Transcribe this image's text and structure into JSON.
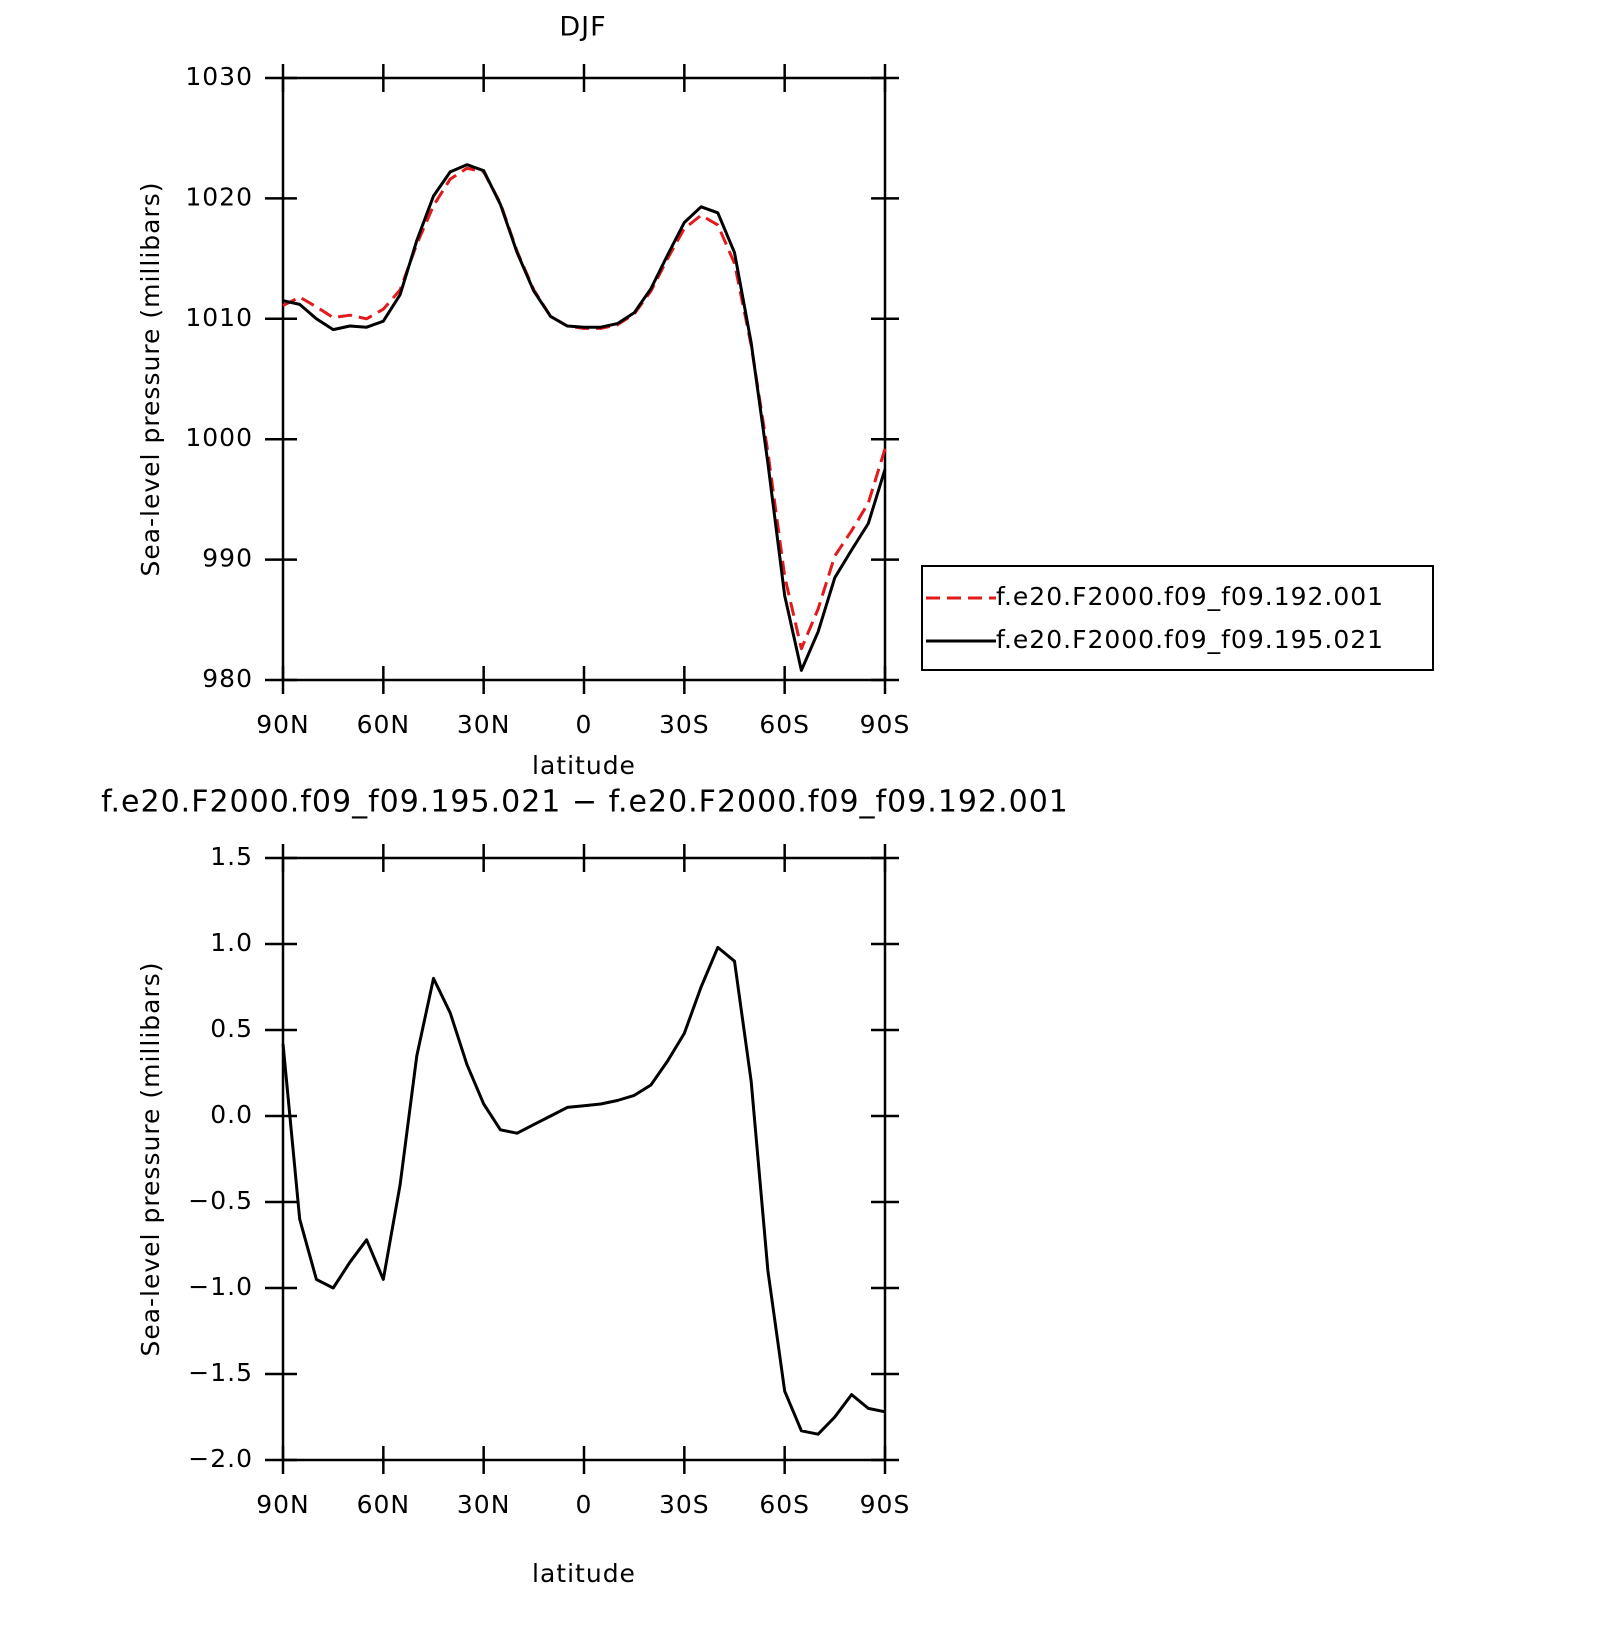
{
  "chart_data": [
    {
      "type": "line",
      "title": "DJF",
      "xlabel": "latitude",
      "ylabel": "Sea-level pressure (millibars)",
      "x": [
        90,
        85,
        80,
        75,
        70,
        65,
        60,
        55,
        50,
        45,
        40,
        35,
        30,
        25,
        20,
        15,
        10,
        5,
        0,
        -5,
        -10,
        -15,
        -20,
        -25,
        -30,
        -35,
        -40,
        -45,
        -50,
        -55,
        -60,
        -65,
        -70,
        -75,
        -80,
        -85,
        -90
      ],
      "xlim": [
        90,
        -90
      ],
      "xticks": [
        {
          "value": 90,
          "label": "90N"
        },
        {
          "value": 60,
          "label": "60N"
        },
        {
          "value": 30,
          "label": "30N"
        },
        0,
        {
          "value": -30,
          "label": "30S"
        },
        {
          "value": -60,
          "label": "60S"
        },
        {
          "value": -90,
          "label": "90S"
        }
      ],
      "ylim": [
        980,
        1030
      ],
      "yticks": [
        980,
        990,
        1000,
        1010,
        1020,
        1030
      ],
      "legend": true,
      "series": [
        {
          "name": "f.e20.F2000.f09_f09.192.001",
          "color": "#e31a1c",
          "linestyle": "dashed",
          "values": [
            1011.1,
            1011.8,
            1011.0,
            1010.1,
            1010.3,
            1010.0,
            1010.8,
            1012.4,
            1016.2,
            1019.4,
            1021.6,
            1022.5,
            1022.2,
            1019.6,
            1015.6,
            1012.4,
            1010.2,
            1009.4,
            1009.2,
            1009.2,
            1009.5,
            1010.4,
            1012.3,
            1015.0,
            1017.5,
            1018.6,
            1017.8,
            1014.6,
            1007.8,
            998.9,
            988.6,
            982.6,
            985.9,
            990.3,
            992.4,
            994.7,
            999.2
          ]
        },
        {
          "name": "f.e20.F2000.f09_f09.195.021",
          "color": "#000000",
          "linestyle": "solid",
          "values": [
            1011.5,
            1011.2,
            1010.0,
            1009.1,
            1009.4,
            1009.3,
            1009.8,
            1012.0,
            1016.5,
            1020.2,
            1022.2,
            1022.8,
            1022.3,
            1019.5,
            1015.5,
            1012.3,
            1010.2,
            1009.4,
            1009.3,
            1009.3,
            1009.6,
            1010.5,
            1012.5,
            1015.3,
            1018.0,
            1019.3,
            1018.8,
            1015.5,
            1008.0,
            998.0,
            987.0,
            980.8,
            984.0,
            988.5,
            990.8,
            993.0,
            997.5
          ]
        }
      ]
    },
    {
      "type": "line",
      "title": "f.e20.F2000.f09_f09.195.021 − f.e20.F2000.f09_f09.192.001",
      "xlabel": "latitude",
      "ylabel": "Sea-level pressure (millibars)",
      "x": [
        90,
        85,
        80,
        75,
        70,
        65,
        60,
        55,
        50,
        45,
        40,
        35,
        30,
        25,
        20,
        15,
        10,
        5,
        0,
        -5,
        -10,
        -15,
        -20,
        -25,
        -30,
        -35,
        -40,
        -45,
        -50,
        -55,
        -60,
        -65,
        -70,
        -75,
        -80,
        -85,
        -90
      ],
      "xlim": [
        90,
        -90
      ],
      "xticks": [
        {
          "value": 90,
          "label": "90N"
        },
        {
          "value": 60,
          "label": "60N"
        },
        {
          "value": 30,
          "label": "30N"
        },
        0,
        {
          "value": -30,
          "label": "30S"
        },
        {
          "value": -60,
          "label": "60S"
        },
        {
          "value": -90,
          "label": "90S"
        }
      ],
      "ylim": [
        -2.0,
        1.5
      ],
      "yticks": [
        {
          "value": -2,
          "label": "−2.0"
        },
        {
          "value": -1.5,
          "label": "−1.5"
        },
        {
          "value": -1,
          "label": "−1.0"
        },
        {
          "value": -0.5,
          "label": "−0.5"
        },
        {
          "value": 0,
          "label": "0.0"
        },
        0.5,
        {
          "value": 1,
          "label": "1.0"
        },
        1.5
      ],
      "legend": false,
      "series": [
        {
          "color": "#000000",
          "linestyle": "solid",
          "values": [
            0.42,
            -0.6,
            -0.95,
            -1.0,
            -0.85,
            -0.72,
            -0.95,
            -0.4,
            0.35,
            0.8,
            0.6,
            0.3,
            0.07,
            -0.08,
            -0.1,
            -0.05,
            0.0,
            0.05,
            0.06,
            0.07,
            0.09,
            0.12,
            0.18,
            0.32,
            0.48,
            0.75,
            0.98,
            0.9,
            0.2,
            -0.9,
            -1.6,
            -1.83,
            -1.85,
            -1.75,
            -1.62,
            -1.7,
            -1.72
          ]
        }
      ]
    }
  ]
}
